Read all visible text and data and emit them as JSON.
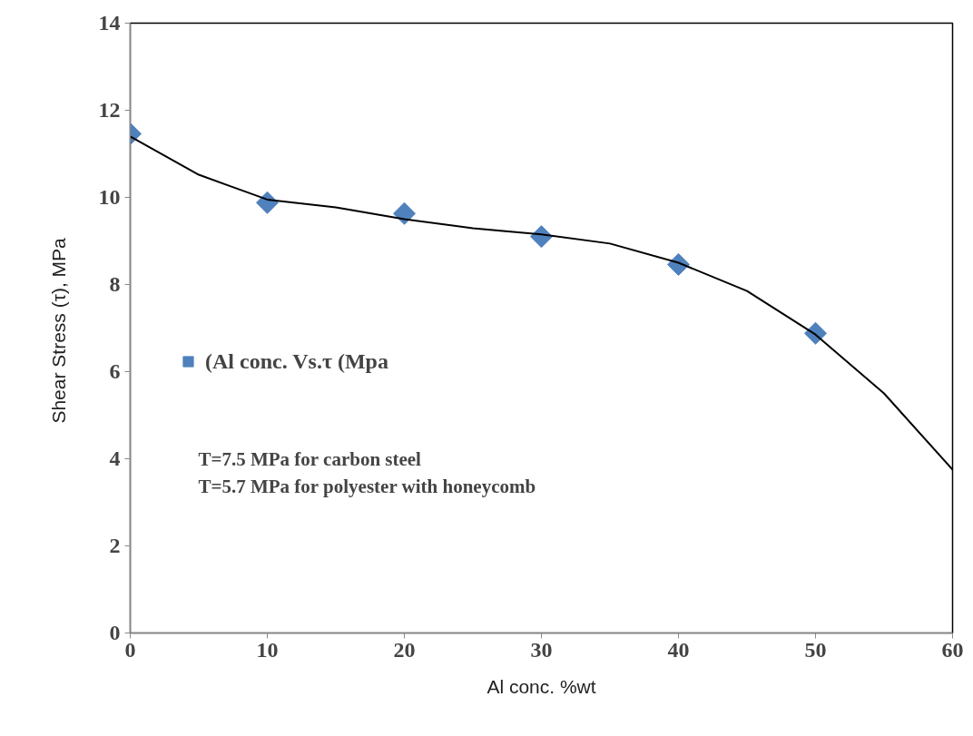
{
  "chart_data": {
    "type": "scatter",
    "xlabel": "Al conc. %wt",
    "ylabel": "Shear  Stress (τ), MPa",
    "xlim": [
      0,
      60
    ],
    "xticks": [
      0,
      10,
      20,
      30,
      40,
      50,
      60
    ],
    "ylim": [
      0,
      14
    ],
    "yticks": [
      0,
      2,
      4,
      6,
      8,
      10,
      12,
      14
    ],
    "grid": false,
    "legend": "left",
    "series": [
      {
        "name": "(Al conc. Vs.τ (Mpa",
        "color": "#4f81bd",
        "marker": "diamond",
        "x": [
          0,
          10,
          20,
          30,
          40,
          50
        ],
        "values": [
          11.46,
          9.88,
          9.63,
          9.1,
          8.46,
          6.88
        ]
      },
      {
        "type": "line",
        "color": "#000000",
        "line_style": "solid",
        "marker": "none",
        "x": [
          0,
          5,
          10,
          15,
          20,
          25,
          30,
          35,
          40,
          45,
          50,
          55,
          60
        ],
        "values": [
          11.4,
          10.52,
          9.95,
          9.77,
          9.5,
          9.29,
          9.15,
          8.94,
          8.5,
          7.85,
          6.85,
          5.5,
          3.75
        ]
      }
    ],
    "annotations": [
      "T=7.5 MPa for carbon steel",
      "T=5.7 MPa for polyester  with honeycomb"
    ]
  }
}
